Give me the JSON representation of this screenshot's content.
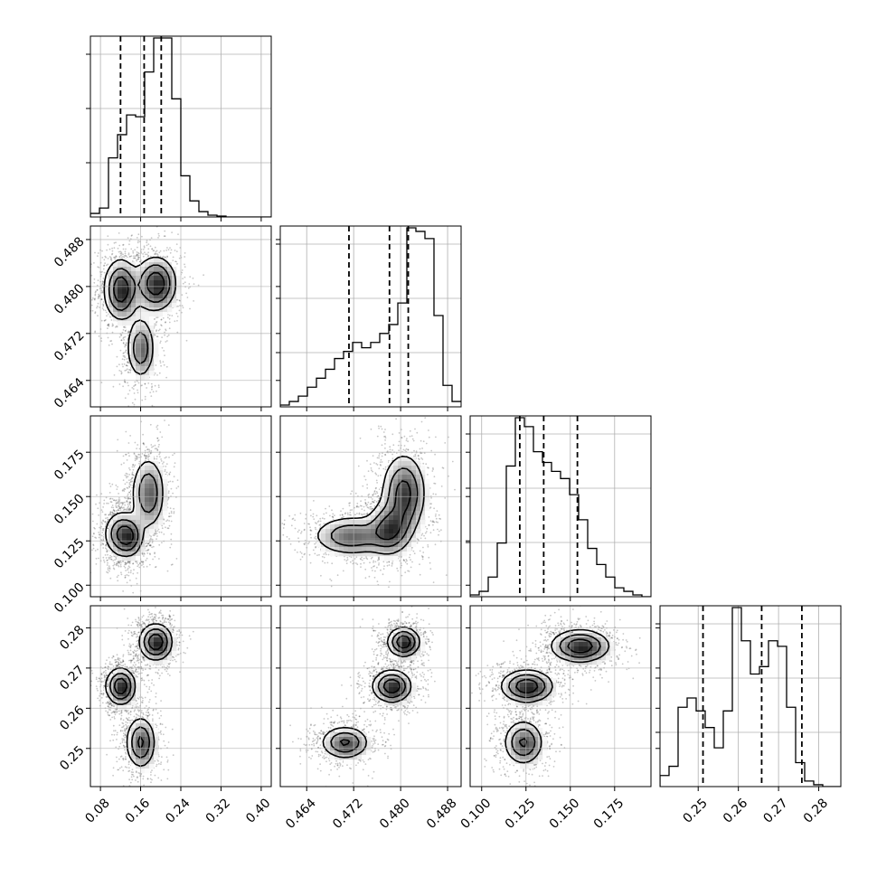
{
  "chart_data": {
    "type": "corner",
    "title": "",
    "grid": true,
    "colors": {
      "line": "#000000",
      "grid": "#b0b0b0",
      "density_dark": "#000000"
    },
    "parameters": [
      {
        "range": [
          0.06,
          0.42
        ],
        "ticks": [
          "0.08",
          "0.16",
          "0.24",
          "0.32",
          "0.40"
        ],
        "tick_values": [
          0.08,
          0.16,
          0.24,
          0.32,
          0.4
        ]
      },
      {
        "range": [
          0.4595,
          0.4903
        ],
        "ticks": [
          "0.464",
          "0.472",
          "0.480",
          "0.488"
        ],
        "tick_values": [
          0.464,
          0.472,
          0.48,
          0.488
        ]
      },
      {
        "range": [
          0.0935,
          0.1955
        ],
        "ticks": [
          "0.100",
          "0.125",
          "0.150",
          "0.175"
        ],
        "tick_values": [
          0.1,
          0.125,
          0.15,
          0.175
        ]
      },
      {
        "range": [
          0.2405,
          0.2855
        ],
        "ticks": [
          "0.25",
          "0.26",
          "0.27",
          "0.28"
        ],
        "tick_values": [
          0.25,
          0.26,
          0.27,
          0.28
        ]
      }
    ],
    "histograms": [
      {
        "bin_start": 0.06,
        "bin_width": 0.018,
        "counts": [
          0.02,
          0.05,
          0.33,
          0.46,
          0.57,
          0.56,
          0.81,
          1.0,
          1.0,
          0.66,
          0.23,
          0.09,
          0.03,
          0.01,
          0.005,
          0,
          0,
          0,
          0,
          0
        ],
        "quantiles": [
          0.12,
          0.167,
          0.201
        ]
      },
      {
        "bin_start": 0.4595,
        "bin_width": 0.00154,
        "counts": [
          0.01,
          0.03,
          0.06,
          0.11,
          0.16,
          0.21,
          0.27,
          0.31,
          0.36,
          0.33,
          0.36,
          0.41,
          0.46,
          0.58,
          1.0,
          0.98,
          0.94,
          0.51,
          0.12,
          0.03
        ],
        "quantiles": [
          0.4712,
          0.4781,
          0.4813
        ]
      },
      {
        "bin_start": 0.0935,
        "bin_width": 0.0051,
        "counts": [
          0.01,
          0.03,
          0.11,
          0.3,
          0.73,
          1.0,
          0.95,
          0.81,
          0.75,
          0.7,
          0.66,
          0.57,
          0.43,
          0.27,
          0.18,
          0.11,
          0.05,
          0.03,
          0.01,
          0
        ],
        "quantiles": [
          0.1215,
          0.135,
          0.154
        ]
      },
      {
        "bin_start": 0.2405,
        "bin_width": 0.00225,
        "counts": [
          0.06,
          0.11,
          0.43,
          0.48,
          0.41,
          0.32,
          0.21,
          0.41,
          0.97,
          0.79,
          0.61,
          0.65,
          0.79,
          0.76,
          0.43,
          0.13,
          0.03,
          0.01,
          0,
          0
        ],
        "quantiles": [
          0.2512,
          0.2658,
          0.2758
        ]
      }
    ],
    "pairs": [
      {
        "i": 1,
        "j": 0,
        "modes": [
          {
            "x": 0.12,
            "y": 0.4795,
            "sx": 0.018,
            "sy": 0.0028,
            "w": 1.0
          },
          {
            "x": 0.19,
            "y": 0.4805,
            "sx": 0.022,
            "sy": 0.0025,
            "w": 1.0
          },
          {
            "x": 0.16,
            "y": 0.4695,
            "sx": 0.015,
            "sy": 0.0028,
            "w": 0.7
          }
        ]
      },
      {
        "i": 2,
        "j": 0,
        "modes": [
          {
            "x": 0.12,
            "y": 0.129,
            "sx": 0.018,
            "sy": 0.007,
            "w": 1.0
          },
          {
            "x": 0.14,
            "y": 0.127,
            "sx": 0.014,
            "sy": 0.006,
            "w": 0.7
          },
          {
            "x": 0.175,
            "y": 0.152,
            "sx": 0.018,
            "sy": 0.011,
            "w": 1.0
          }
        ]
      },
      {
        "i": 2,
        "j": 1,
        "modes": [
          {
            "x": 0.4715,
            "y": 0.128,
            "sx": 0.0035,
            "sy": 0.006,
            "w": 0.8
          },
          {
            "x": 0.478,
            "y": 0.132,
            "sx": 0.002,
            "sy": 0.008,
            "w": 0.9
          },
          {
            "x": 0.4805,
            "y": 0.152,
            "sx": 0.002,
            "sy": 0.012,
            "w": 1.0
          }
        ]
      },
      {
        "i": 3,
        "j": 0,
        "modes": [
          {
            "x": 0.12,
            "y": 0.2655,
            "sx": 0.016,
            "sy": 0.0025,
            "w": 1.0
          },
          {
            "x": 0.19,
            "y": 0.2765,
            "sx": 0.018,
            "sy": 0.0025,
            "w": 1.0
          },
          {
            "x": 0.16,
            "y": 0.2515,
            "sx": 0.016,
            "sy": 0.0035,
            "w": 0.8
          }
        ]
      },
      {
        "i": 3,
        "j": 1,
        "modes": [
          {
            "x": 0.4705,
            "y": 0.2515,
            "sx": 0.0022,
            "sy": 0.0022,
            "w": 0.8
          },
          {
            "x": 0.4785,
            "y": 0.2655,
            "sx": 0.0018,
            "sy": 0.0022,
            "w": 1.0
          },
          {
            "x": 0.4805,
            "y": 0.2765,
            "sx": 0.0015,
            "sy": 0.002,
            "w": 1.0
          }
        ]
      },
      {
        "i": 3,
        "j": 2,
        "modes": [
          {
            "x": 0.1255,
            "y": 0.2655,
            "sx": 0.008,
            "sy": 0.0022,
            "w": 1.0
          },
          {
            "x": 0.1555,
            "y": 0.2755,
            "sx": 0.009,
            "sy": 0.0022,
            "w": 1.0
          },
          {
            "x": 0.1235,
            "y": 0.2515,
            "sx": 0.006,
            "sy": 0.003,
            "w": 0.8
          }
        ]
      }
    ]
  }
}
